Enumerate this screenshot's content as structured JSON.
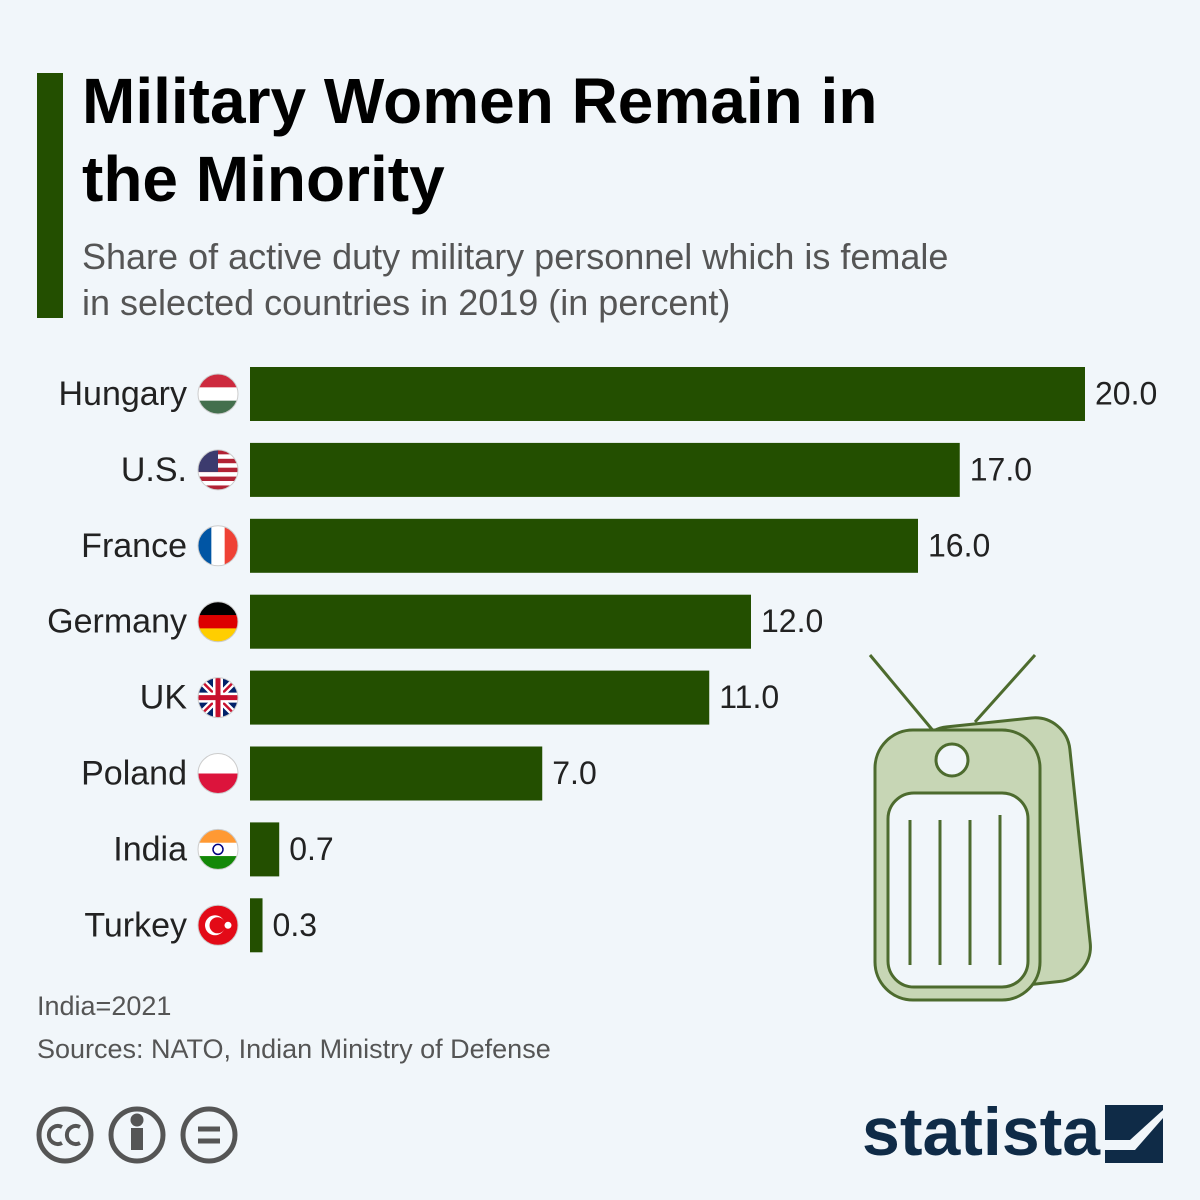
{
  "chart_data": {
    "type": "bar",
    "orientation": "horizontal",
    "title": "Military Women Remain in the Minority",
    "subtitle": "Share of active duty military personnel which is female in selected countries in 2019 (in percent)",
    "categories": [
      "Hungary",
      "U.S.",
      "France",
      "Germany",
      "UK",
      "Poland",
      "India",
      "Turkey"
    ],
    "values": [
      20.0,
      17.0,
      16.0,
      12.0,
      11.0,
      7.0,
      0.7,
      0.3
    ],
    "value_labels": [
      "20.0",
      "17.0",
      "16.0",
      "12.0",
      "11.0",
      "7.0",
      "0.7",
      "0.3"
    ],
    "color": "#234f00",
    "note": "India=2021",
    "source": "Sources: NATO, Indian Ministry of Defense",
    "brand": "statista"
  }
}
